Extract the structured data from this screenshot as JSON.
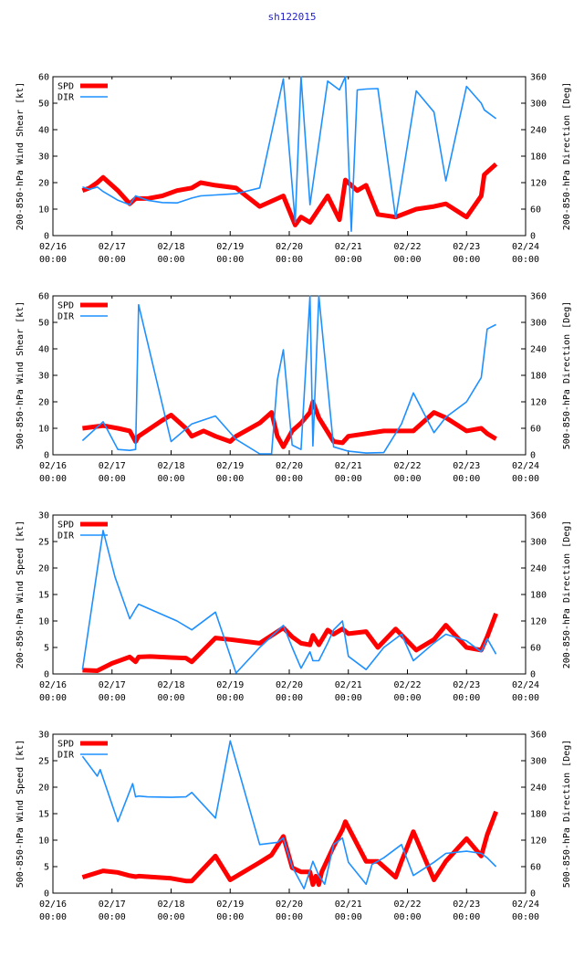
{
  "page_title": "sh122015",
  "colors": {
    "spd": "#ff0000",
    "dir": "#1e90ff",
    "axis": "#000000"
  },
  "chart_data": [
    {
      "type": "line",
      "title": "",
      "xlabel": "",
      "ylabel": "200-850-hPa Wind Shear [kt]",
      "y2label": "200-850-hPa Direction [Deg]",
      "xlim": [
        0,
        8
      ],
      "ylim": [
        0,
        60
      ],
      "y2lim": [
        0,
        360
      ],
      "yticks": [
        0,
        10,
        20,
        30,
        40,
        50,
        60
      ],
      "y2ticks": [
        0,
        60,
        120,
        180,
        240,
        300,
        360
      ],
      "xticks": [
        {
          "date": "02/16",
          "time": "00:00"
        },
        {
          "date": "02/17",
          "time": "00:00"
        },
        {
          "date": "02/18",
          "time": "00:00"
        },
        {
          "date": "02/19",
          "time": "00:00"
        },
        {
          "date": "02/20",
          "time": "00:00"
        },
        {
          "date": "02/21",
          "time": "00:00"
        },
        {
          "date": "02/22",
          "time": "00:00"
        },
        {
          "date": "02/23",
          "time": "00:00"
        },
        {
          "date": "02/24",
          "time": "00:00"
        }
      ],
      "legend_position": "top-left",
      "series": [
        {
          "name": "SPD",
          "axis": "left",
          "x": [
            0.5,
            0.62,
            0.75,
            0.85,
            1.1,
            1.3,
            1.4,
            1.6,
            1.85,
            2.1,
            2.35,
            2.5,
            2.75,
            3.1,
            3.5,
            3.9,
            4.1,
            4.2,
            4.35,
            4.65,
            4.85,
            4.95,
            5.05,
            5.15,
            5.3,
            5.5,
            5.8,
            6.15,
            6.45,
            6.65,
            7.0,
            7.25,
            7.3,
            7.5
          ],
          "values": [
            17,
            18,
            20,
            22,
            17,
            12,
            14,
            14,
            15,
            17,
            18,
            20,
            19,
            18,
            11,
            15,
            4,
            7,
            5,
            15,
            6,
            21,
            19,
            17,
            19,
            8,
            7,
            10,
            11,
            12,
            7,
            15,
            23,
            27
          ]
        },
        {
          "name": "DIR",
          "axis": "right",
          "x": [
            0.5,
            0.62,
            0.75,
            0.85,
            1.1,
            1.3,
            1.4,
            1.6,
            1.85,
            2.1,
            2.35,
            2.5,
            2.75,
            3.1,
            3.5,
            3.9,
            4.1,
            4.2,
            4.35,
            4.65,
            4.85,
            4.95,
            5.05,
            5.15,
            5.3,
            5.5,
            5.8,
            6.15,
            6.45,
            6.65,
            7.0,
            7.25,
            7.3,
            7.5
          ],
          "values": [
            110,
            105,
            110,
            100,
            80,
            70,
            90,
            80,
            75,
            74,
            85,
            90,
            92,
            95,
            108,
            355,
            30,
            360,
            70,
            350,
            330,
            360,
            10,
            330,
            332,
            333,
            40,
            328,
            280,
            124,
            338,
            300,
            285,
            265
          ]
        }
      ]
    },
    {
      "type": "line",
      "title": "",
      "xlabel": "",
      "ylabel": "500-850-hPa Wind Shear [kt]",
      "y2label": "500-850-hPa Direction [Deg]",
      "xlim": [
        0,
        8
      ],
      "ylim": [
        0,
        60
      ],
      "y2lim": [
        0,
        360
      ],
      "yticks": [
        0,
        10,
        20,
        30,
        40,
        50,
        60
      ],
      "y2ticks": [
        0,
        60,
        120,
        180,
        240,
        300,
        360
      ],
      "xticks": [
        {
          "date": "02/16",
          "time": "00:00"
        },
        {
          "date": "02/17",
          "time": "00:00"
        },
        {
          "date": "02/18",
          "time": "00:00"
        },
        {
          "date": "02/19",
          "time": "00:00"
        },
        {
          "date": "02/20",
          "time": "00:00"
        },
        {
          "date": "02/21",
          "time": "00:00"
        },
        {
          "date": "02/22",
          "time": "00:00"
        },
        {
          "date": "02/23",
          "time": "00:00"
        },
        {
          "date": "02/24",
          "time": "00:00"
        }
      ],
      "legend_position": "top-left",
      "series": [
        {
          "name": "SPD",
          "axis": "left",
          "x": [
            0.5,
            0.85,
            1.1,
            1.3,
            1.4,
            1.45,
            1.85,
            2.0,
            2.25,
            2.35,
            2.55,
            2.75,
            3.0,
            3.1,
            3.5,
            3.7,
            3.8,
            3.9,
            4.05,
            4.2,
            4.35,
            4.4,
            4.5,
            4.75,
            4.9,
            5.0,
            5.3,
            5.6,
            5.9,
            6.1,
            6.45,
            6.65,
            7.0,
            7.25,
            7.35,
            7.5
          ],
          "values": [
            10,
            11,
            10,
            9,
            5,
            7,
            13,
            15,
            10,
            7,
            9,
            7,
            5,
            7,
            12,
            16,
            7,
            3,
            9,
            12,
            16,
            20,
            14,
            5,
            4.5,
            7,
            8,
            9,
            9,
            9,
            16,
            14,
            9,
            10,
            8,
            6
          ]
        },
        {
          "name": "DIR",
          "axis": "right",
          "x": [
            0.5,
            0.85,
            1.1,
            1.3,
            1.4,
            1.45,
            2.0,
            2.35,
            2.75,
            3.1,
            3.5,
            3.7,
            3.8,
            3.9,
            4.05,
            4.2,
            4.35,
            4.4,
            4.5,
            4.75,
            4.9,
            5.0,
            5.3,
            5.6,
            5.9,
            6.1,
            6.45,
            6.65,
            7.0,
            7.25,
            7.35,
            7.5
          ],
          "values": [
            32,
            75,
            12,
            10,
            12,
            340,
            30,
            70,
            88,
            35,
            2,
            2,
            170,
            238,
            22,
            12,
            360,
            20,
            360,
            18,
            12,
            8,
            4,
            5,
            70,
            140,
            50,
            85,
            120,
            175,
            285,
            295
          ]
        }
      ]
    },
    {
      "type": "line",
      "title": "",
      "xlabel": "",
      "ylabel": "200-850-hPa Wind Speed [kt]",
      "y2label": "200-850-hPa Direction [Deg]",
      "xlim": [
        0,
        8
      ],
      "ylim": [
        0,
        30
      ],
      "y2lim": [
        0,
        360
      ],
      "yticks": [
        0,
        5,
        10,
        15,
        20,
        25,
        30
      ],
      "y2ticks": [
        0,
        60,
        120,
        180,
        240,
        300,
        360
      ],
      "xticks": [
        {
          "date": "02/16",
          "time": "00:00"
        },
        {
          "date": "02/17",
          "time": "00:00"
        },
        {
          "date": "02/18",
          "time": "00:00"
        },
        {
          "date": "02/19",
          "time": "00:00"
        },
        {
          "date": "02/20",
          "time": "00:00"
        },
        {
          "date": "02/21",
          "time": "00:00"
        },
        {
          "date": "02/22",
          "time": "00:00"
        },
        {
          "date": "02/23",
          "time": "00:00"
        },
        {
          "date": "02/24",
          "time": "00:00"
        }
      ],
      "legend_position": "top-left",
      "series": [
        {
          "name": "SPD",
          "axis": "left",
          "x": [
            0.5,
            0.75,
            1.0,
            1.3,
            1.4,
            1.45,
            1.65,
            2.0,
            2.25,
            2.35,
            2.75,
            3.0,
            3.5,
            3.9,
            4.05,
            4.2,
            4.35,
            4.4,
            4.5,
            4.65,
            4.75,
            4.9,
            5.0,
            5.3,
            5.5,
            5.8,
            6.15,
            6.45,
            6.65,
            7.0,
            7.25,
            7.35,
            7.5
          ],
          "values": [
            0.7,
            0.6,
            2.0,
            3.2,
            2.3,
            3.2,
            3.3,
            3.1,
            3.0,
            2.3,
            6.8,
            6.5,
            5.8,
            8.7,
            7.0,
            5.8,
            5.5,
            7.3,
            5.5,
            8.3,
            7.5,
            8.5,
            7.6,
            8.0,
            5.0,
            8.5,
            4.5,
            6.5,
            9.2,
            5.0,
            4.5,
            7.0,
            11.4
          ]
        },
        {
          "name": "DIR",
          "axis": "right",
          "x": [
            0.5,
            0.85,
            1.05,
            1.3,
            1.4,
            1.45,
            2.1,
            2.35,
            2.75,
            3.1,
            3.5,
            3.9,
            4.05,
            4.2,
            4.35,
            4.4,
            4.5,
            4.65,
            4.75,
            4.9,
            5.0,
            5.3,
            5.6,
            5.9,
            6.1,
            6.45,
            6.65,
            7.0,
            7.25,
            7.35,
            7.5
          ],
          "values": [
            10,
            325,
            220,
            125,
            148,
            158,
            120,
            100,
            140,
            2,
            60,
            110,
            60,
            13,
            50,
            30,
            30,
            70,
            100,
            120,
            40,
            10,
            60,
            90,
            30,
            70,
            90,
            75,
            50,
            80,
            45
          ]
        }
      ]
    },
    {
      "type": "line",
      "title": "",
      "xlabel": "",
      "ylabel": "500-850-hPa Wind Speed [kt]",
      "y2label": "500-850-hPa Direction [Deg]",
      "xlim": [
        0,
        8
      ],
      "ylim": [
        0,
        30
      ],
      "y2lim": [
        0,
        360
      ],
      "yticks": [
        0,
        5,
        10,
        15,
        20,
        25,
        30
      ],
      "y2ticks": [
        0,
        60,
        120,
        180,
        240,
        300,
        360
      ],
      "xticks": [
        {
          "date": "02/16",
          "time": "00:00"
        },
        {
          "date": "02/17",
          "time": "00:00"
        },
        {
          "date": "02/18",
          "time": "00:00"
        },
        {
          "date": "02/19",
          "time": "00:00"
        },
        {
          "date": "02/20",
          "time": "00:00"
        },
        {
          "date": "02/21",
          "time": "00:00"
        },
        {
          "date": "02/22",
          "time": "00:00"
        },
        {
          "date": "02/23",
          "time": "00:00"
        },
        {
          "date": "02/24",
          "time": "00:00"
        }
      ],
      "legend_position": "top-left",
      "series": [
        {
          "name": "SPD",
          "axis": "left",
          "x": [
            0.5,
            0.85,
            1.1,
            1.3,
            1.4,
            1.45,
            2.0,
            2.25,
            2.35,
            2.75,
            3.0,
            3.5,
            3.7,
            3.9,
            4.05,
            4.2,
            4.35,
            4.4,
            4.45,
            4.5,
            4.55,
            4.75,
            4.9,
            4.95,
            5.3,
            5.5,
            5.8,
            5.9,
            6.1,
            6.45,
            6.65,
            7.0,
            7.25,
            7.35,
            7.5
          ],
          "values": [
            3.0,
            4.2,
            3.9,
            3.3,
            3.1,
            3.2,
            2.8,
            2.3,
            2.3,
            7.0,
            2.5,
            5.8,
            7.2,
            10.7,
            4.8,
            4.0,
            4.0,
            1.6,
            3.2,
            1.6,
            4.0,
            8.8,
            12.0,
            13.5,
            6.0,
            6.0,
            3.0,
            6.0,
            11.6,
            2.5,
            6.0,
            10.3,
            7.0,
            11.0,
            15.4
          ]
        },
        {
          "name": "DIR",
          "axis": "right",
          "x": [
            0.5,
            0.75,
            0.8,
            1.1,
            1.35,
            1.4,
            1.45,
            1.6,
            2.0,
            2.25,
            2.35,
            2.75,
            3.0,
            3.5,
            3.8,
            3.9,
            4.05,
            4.25,
            4.4,
            4.5,
            4.6,
            4.75,
            4.9,
            5.0,
            5.3,
            5.4,
            5.6,
            5.9,
            6.1,
            6.45,
            6.65,
            7.0,
            7.25,
            7.35,
            7.5
          ],
          "values": [
            310,
            265,
            280,
            162,
            248,
            218,
            220,
            218,
            217,
            218,
            228,
            170,
            345,
            110,
            115,
            125,
            60,
            10,
            72,
            40,
            20,
            110,
            125,
            70,
            20,
            65,
            80,
            110,
            40,
            70,
            90,
            95,
            90,
            80,
            60
          ]
        }
      ]
    }
  ]
}
